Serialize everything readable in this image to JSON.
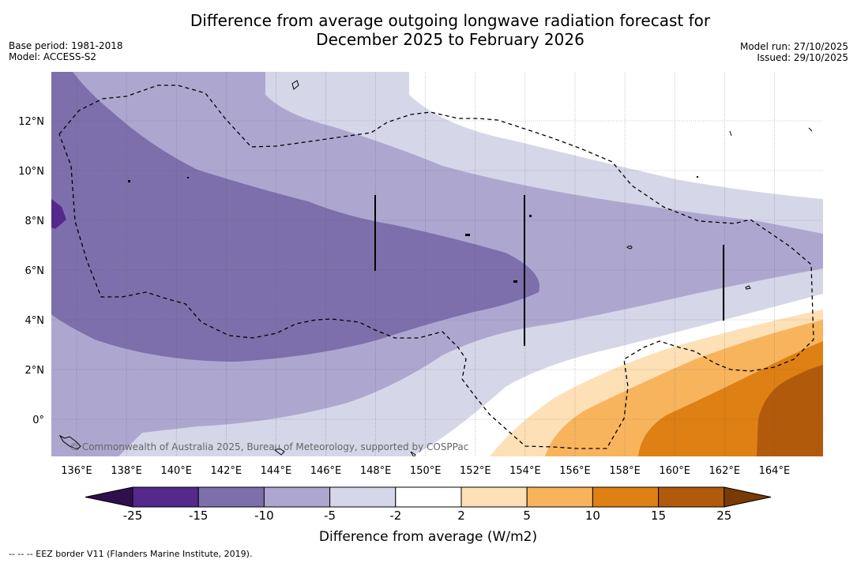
{
  "header": {
    "title_line1": "Difference from average outgoing longwave radiation forecast for",
    "title_line2": "December 2025 to February 2026",
    "base_period": "Base period: 1981-2018",
    "model": "Model: ACCESS-S2",
    "model_run": "Model run: 27/10/2025",
    "issued": "Issued: 29/10/2025"
  },
  "map": {
    "x_ticks": [
      "136°E",
      "138°E",
      "140°E",
      "142°E",
      "144°E",
      "146°E",
      "148°E",
      "150°E",
      "152°E",
      "154°E",
      "156°E",
      "158°E",
      "160°E",
      "162°E",
      "164°E"
    ],
    "y_ticks": [
      "12°N",
      "10°N",
      "8°N",
      "6°N",
      "4°N",
      "2°N",
      "0°"
    ],
    "copyright": "© Commonwealth of Australia 2025, Bureau of Meteorology, supported by COSPPac"
  },
  "colorbar": {
    "labels": [
      "-25",
      "-15",
      "-10",
      "-5",
      "-2",
      "2",
      "5",
      "10",
      "15",
      "25"
    ],
    "colors": [
      "#2f0f4e",
      "#55288c",
      "#7d6fab",
      "#ada7d0",
      "#d6d6e9",
      "#ffffff",
      "#fde0b6",
      "#f8b45d",
      "#de8013",
      "#b25a0c",
      "#7a3a06"
    ],
    "axis_label": "Difference from average (W/m2)"
  },
  "legend": {
    "eez": "--  --  -- EEZ border V11 (Flanders Marine Institute, 2019)."
  }
}
